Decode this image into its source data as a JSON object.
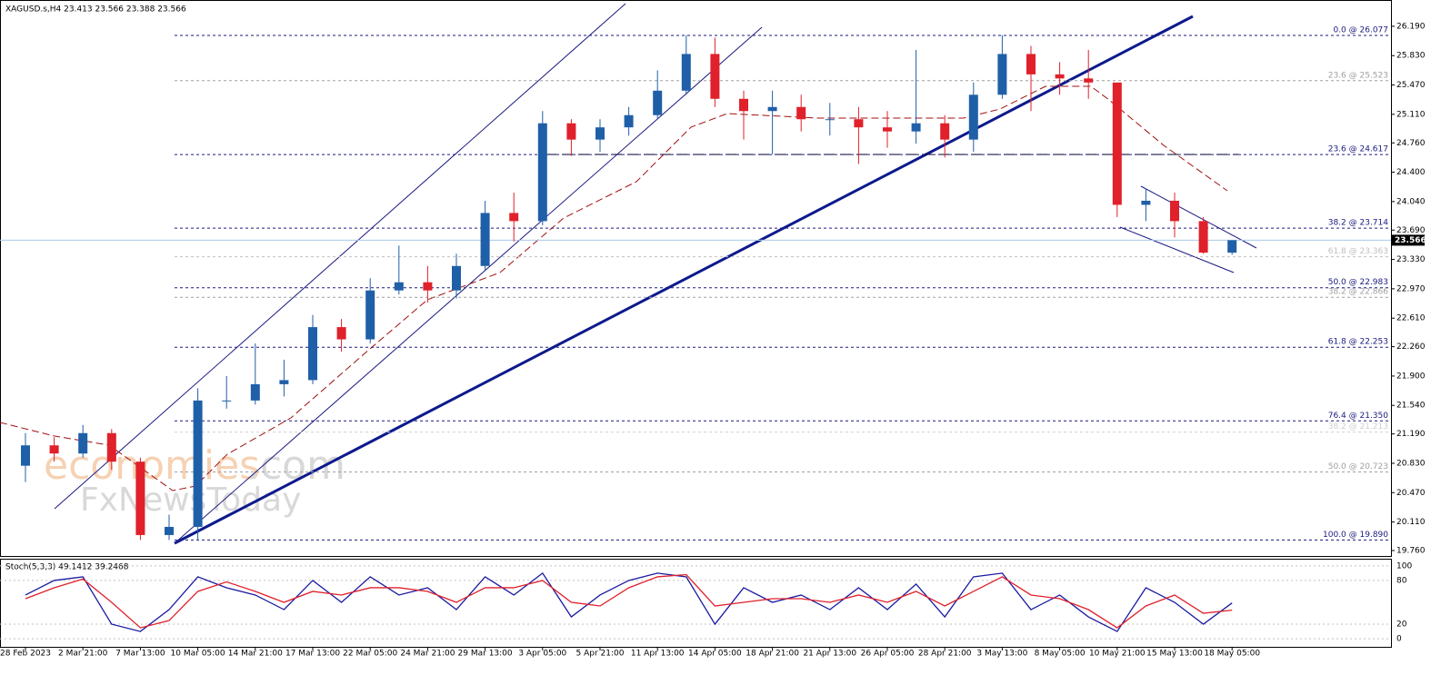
{
  "chart_data": [
    {
      "type": "candlestick",
      "title": "XAGUSD.s,H4  23.413 23.566 23.388 23.566",
      "categories": [
        "28 Feb 2023",
        null,
        "2 Mar 21:00",
        null,
        "7 Mar 13:00",
        null,
        "10 Mar 05:00",
        null,
        "14 Mar 21:00",
        null,
        "17 Mar 13:00",
        null,
        "22 Mar 05:00",
        null,
        "24 Mar 21:00",
        null,
        "29 Mar 13:00",
        null,
        "3 Apr 05:00",
        null,
        "5 Apr 21:00",
        null,
        "11 Apr 13:00",
        null,
        "14 Apr 05:00",
        null,
        "18 Apr 21:00",
        null,
        "21 Apr 13:00",
        null,
        "26 Apr 05:00",
        null,
        "28 Apr 21:00",
        null,
        "3 May 13:00",
        null,
        "8 May 05:00",
        null,
        "10 May 21:00",
        null,
        "15 May 13:00",
        null,
        "18 May 05:00"
      ],
      "open": [
        20.8,
        21.05,
        20.95,
        21.2,
        20.85,
        19.95,
        20.05,
        21.6,
        21.6,
        21.8,
        21.85,
        22.5,
        22.35,
        22.95,
        23.05,
        22.95,
        23.25,
        23.9,
        23.8,
        25.0,
        24.8,
        24.95,
        25.1,
        25.4,
        25.85,
        25.3,
        25.15,
        25.2,
        25.05,
        25.05,
        24.95,
        24.9,
        25.0,
        24.8,
        25.35,
        25.85,
        25.6,
        25.55,
        25.5,
        24.0,
        24.05,
        23.8,
        23.413
      ],
      "high": [
        21.2,
        21.15,
        21.3,
        21.25,
        20.9,
        20.2,
        21.75,
        21.9,
        22.3,
        22.1,
        22.65,
        22.6,
        23.1,
        23.5,
        23.25,
        23.4,
        24.05,
        24.15,
        25.15,
        25.05,
        25.05,
        25.2,
        25.65,
        26.08,
        26.05,
        25.4,
        25.4,
        25.35,
        25.25,
        25.2,
        25.15,
        25.9,
        25.1,
        25.5,
        26.08,
        25.95,
        25.75,
        25.9,
        25.5,
        24.2,
        24.15,
        23.85,
        23.566
      ],
      "low": [
        20.6,
        20.85,
        20.9,
        20.75,
        19.89,
        19.89,
        19.89,
        21.5,
        21.55,
        21.65,
        21.8,
        22.2,
        22.3,
        22.9,
        22.8,
        22.85,
        23.2,
        23.55,
        23.75,
        24.6,
        24.65,
        24.85,
        25.05,
        25.35,
        25.2,
        24.8,
        24.62,
        24.9,
        24.85,
        24.5,
        24.7,
        24.75,
        24.58,
        24.65,
        25.3,
        25.15,
        25.35,
        25.3,
        23.85,
        23.8,
        23.6,
        23.4,
        23.388
      ],
      "close": [
        21.05,
        20.95,
        21.2,
        20.85,
        19.95,
        20.05,
        21.6,
        21.6,
        21.8,
        21.85,
        22.5,
        22.35,
        22.95,
        23.05,
        22.95,
        23.25,
        23.9,
        23.8,
        25.0,
        24.8,
        24.95,
        25.1,
        25.4,
        25.85,
        25.3,
        25.15,
        25.2,
        25.05,
        25.05,
        24.95,
        24.9,
        25.0,
        24.8,
        25.35,
        25.85,
        25.6,
        25.55,
        25.5,
        24.0,
        24.05,
        23.8,
        23.413,
        23.566
      ],
      "up_color": "#1f5fa8",
      "down_color": "#e0202a",
      "last_price": 23.566,
      "ylim": [
        19.693,
        26.501
      ],
      "yticks": [
        {
          "value": 26.19,
          "label": "26.190"
        },
        {
          "value": 25.83,
          "label": "25.830"
        },
        {
          "value": 25.47,
          "label": "25.470"
        },
        {
          "value": 25.11,
          "label": "25.110"
        },
        {
          "value": 24.76,
          "label": "24.760"
        },
        {
          "value": 24.4,
          "label": "24.400"
        },
        {
          "value": 24.04,
          "label": "24.040"
        },
        {
          "value": 23.69,
          "label": "23.690"
        },
        {
          "value": 23.33,
          "label": "23.330"
        },
        {
          "value": 22.97,
          "label": "22.970"
        },
        {
          "value": 22.61,
          "label": "22.610"
        },
        {
          "value": 22.26,
          "label": "22.260"
        },
        {
          "value": 21.9,
          "label": "21.900"
        },
        {
          "value": 21.54,
          "label": "21.540"
        },
        {
          "value": 21.19,
          "label": "21.190"
        },
        {
          "value": 20.83,
          "label": "20.830"
        },
        {
          "value": 20.47,
          "label": "20.470"
        },
        {
          "value": 20.11,
          "label": "20.110"
        },
        {
          "value": 19.76,
          "label": "19.760"
        }
      ],
      "fib_levels": [
        {
          "label": "0.0 @ 26.077",
          "value": 26.077,
          "color": "#1a1a80"
        },
        {
          "label": "23.6 @ 25.523",
          "value": 25.523,
          "color": "#a0a0a0"
        },
        {
          "label": "23.6 @ 24.617",
          "value": 24.617,
          "color": "#1a1a80"
        },
        {
          "label": "38.2 @ 23.714",
          "value": 23.714,
          "color": "#1a1a80"
        },
        {
          "label": "61.8 @ 23.363",
          "value": 23.363,
          "color": "#c0c0c0"
        },
        {
          "label": "50.0 @ 22.983",
          "value": 22.983,
          "color": "#1a1a80"
        },
        {
          "label": "38.2 @ 22.866",
          "value": 22.866,
          "color": "#a0a0a0"
        },
        {
          "label": "61.8 @ 22.253",
          "value": 22.253,
          "color": "#1a1a80"
        },
        {
          "label": "76.4 @ 21.350",
          "value": 21.35,
          "color": "#1a1a80"
        },
        {
          "label": "38.2 @ 21.213",
          "value": 21.213,
          "color": "#d0d0d0"
        },
        {
          "label": "50.0 @ 20.723",
          "value": 20.723,
          "color": "#a0a0a0"
        },
        {
          "label": "100.0 @ 19.890",
          "value": 19.89,
          "color": "#1a1a80"
        }
      ],
      "watermark": [
        "economies",
        ".com",
        "FxNewsToday"
      ]
    },
    {
      "type": "line",
      "title": "Stoch(5,3,3) 49.1412 39.2468",
      "series": [
        {
          "name": "Main",
          "color": "#1a1aa0",
          "values": [
            60,
            80,
            85,
            20,
            10,
            40,
            85,
            70,
            60,
            40,
            80,
            50,
            85,
            60,
            70,
            40,
            85,
            60,
            90,
            30,
            60,
            80,
            90,
            85,
            20,
            70,
            50,
            60,
            40,
            70,
            40,
            75,
            30,
            85,
            90,
            40,
            60,
            30,
            10,
            70,
            50,
            20,
            49.1412
          ]
        },
        {
          "name": "Signal",
          "color": "#e0202a",
          "values": [
            55,
            70,
            82,
            50,
            15,
            25,
            65,
            78,
            65,
            50,
            65,
            60,
            70,
            70,
            65,
            50,
            70,
            70,
            80,
            50,
            45,
            70,
            85,
            88,
            45,
            50,
            55,
            55,
            50,
            60,
            50,
            65,
            45,
            65,
            85,
            60,
            55,
            40,
            15,
            45,
            60,
            35,
            39.2468
          ]
        }
      ],
      "ylim": [
        -11.1,
        108.6
      ],
      "yticks": [
        100,
        80,
        20,
        0
      ]
    }
  ]
}
